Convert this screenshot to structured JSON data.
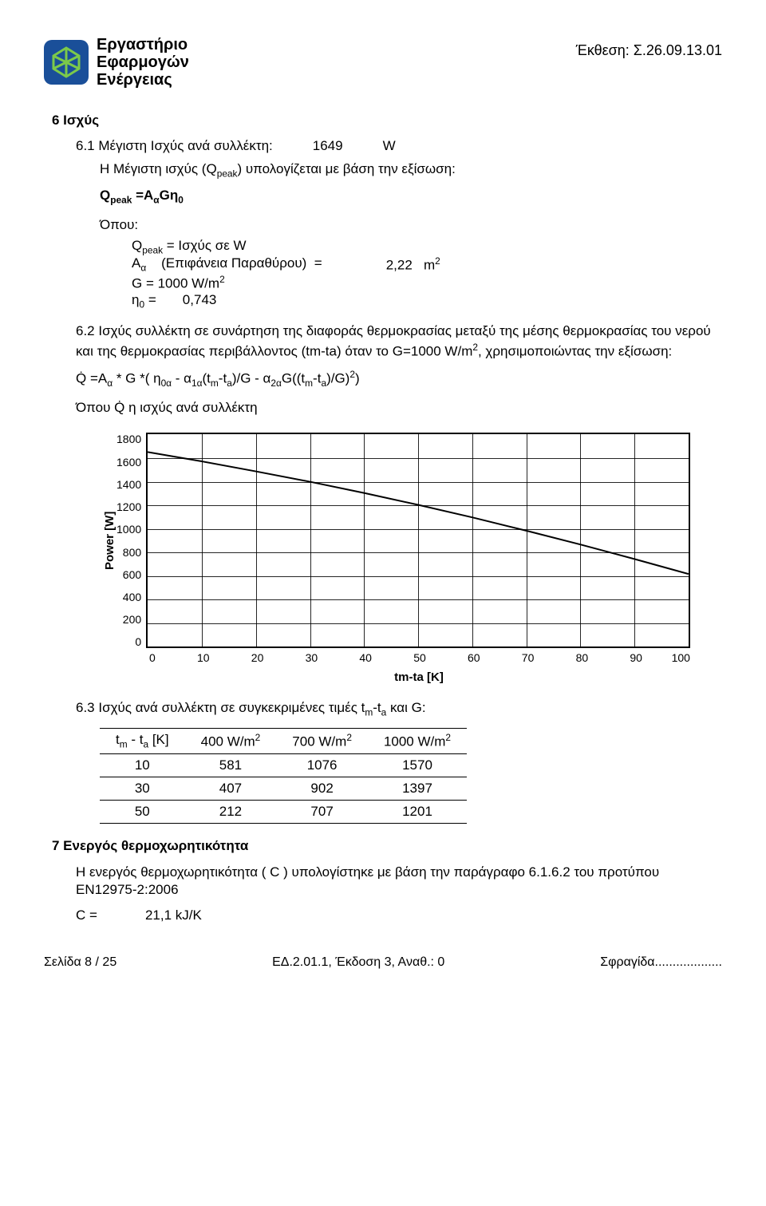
{
  "header": {
    "logo_line1": "Εργαστήριο",
    "logo_line2": "Εφαρμογών",
    "logo_line3": "Ενέργειας",
    "report_ref": "Έκθεση: Σ.26.09.13.01"
  },
  "s6": {
    "title": "6 Ισχύς",
    "s61_label": "6.1 Μέγιστη Ισχύς ανά συλλέκτη:",
    "s61_value": "1649",
    "s61_unit": "W",
    "s61_desc_prefix": "Η Μέγιστη ισχύς (Q",
    "s61_desc_sub": "peak",
    "s61_desc_suffix": ") υπολογίζεται με βάση την εξίσωση:",
    "formula1_lhs": "Q",
    "formula1_sub1": "peak",
    "formula1_eq": " =Α",
    "formula1_sub2": "α",
    "formula1_rhs": "Gη",
    "formula1_sub3": "0",
    "where_label": "Όπου:",
    "q_line": "Q",
    "q_line_sub": "peak",
    "q_line_rest": " = Ισχύς σε W",
    "a_line": "Α",
    "a_sub": "α",
    "a_rest": "    (Επιφάνεια Παραθύρου)  =",
    "a_val": "2,22",
    "a_unit": "m",
    "a_exp": "2",
    "g_line": "G  = 1000 W/m",
    "g_exp": "2",
    "eta_line": "η",
    "eta_sub": "0",
    "eta_rest": " =       0,743",
    "s62_text": "6.2 Ισχύς συλλέκτη σε συνάρτηση της διαφοράς θερμοκρασίας μεταξύ της  μέσης θερμοκρασίας του νερού και  της θερμοκρασίας περιβάλλοντος (tm-ta) όταν το  G=1000 W/m",
    "s62_exp": "2",
    "s62_text2": ", χρησιμοποιώντας την εξίσωση:",
    "s62_formula": "Q̇ =A",
    "s62_f_sub1": "α",
    "s62_f_mid": " * G *( η",
    "s62_f_sub2": "0α",
    "s62_f_mid2": " - α",
    "s62_f_sub3": "1α",
    "s62_f_mid3": "(t",
    "s62_f_sub4": "m",
    "s62_f_mid4": "-t",
    "s62_f_sub5": "a",
    "s62_f_mid5": ")/G - α",
    "s62_f_sub6": "2α",
    "s62_f_mid6": "G((t",
    "s62_f_sub7": "m",
    "s62_f_mid7": "-t",
    "s62_f_sub8": "a",
    "s62_f_mid8": ")/G)",
    "s62_f_exp": "2",
    "s62_f_end": ")",
    "s62_where": "Όπου Q̇ η ισχύς ανά συλλέκτη"
  },
  "chart": {
    "type": "line",
    "y_title": "Power  [W]",
    "x_title": "tm-ta [K]",
    "y_ticks": [
      "1800",
      "1600",
      "1400",
      "1200",
      "1000",
      "800",
      "600",
      "400",
      "200",
      "0"
    ],
    "x_ticks": [
      "0",
      "10",
      "20",
      "30",
      "40",
      "50",
      "60",
      "70",
      "80",
      "90",
      "100"
    ],
    "ylim": [
      0,
      1800
    ],
    "xlim": [
      0,
      100
    ],
    "line_color": "#000000",
    "line_width": 2,
    "grid_color": "#000000",
    "background_color": "#ffffff",
    "points_y": [
      1649,
      1570,
      1485,
      1397,
      1302,
      1201,
      1095,
      982,
      865,
      742,
      615
    ]
  },
  "s63": {
    "label": "6.3  Ισχύς ανά συλλέκτη σε συγκεκριμένες τιμές t",
    "sub1": "m",
    "mid": "-t",
    "sub2": "a",
    "suffix": " και G:",
    "col0": "t",
    "col0_sub1": "m",
    "col0_mid": " - t",
    "col0_sub2": "a",
    "col0_suffix": " [K]",
    "col1": "400 W/m",
    "col2": "700 W/m",
    "col3": "1000 W/m",
    "exp": "2",
    "rows": [
      [
        "10",
        "581",
        "1076",
        "1570"
      ],
      [
        "30",
        "407",
        "902",
        "1397"
      ],
      [
        "50",
        "212",
        "707",
        "1201"
      ]
    ]
  },
  "s7": {
    "title": "7 Ενεργός θερμοχωρητικότητα",
    "text": "Η ενεργός θερμοχωρητικότητα ( C ) υπολογίστηκε με βάση την παράγραφο 6.1.6.2 του προτύπου EN12975-2:2006",
    "c_label": "C =",
    "c_value": "21,1 kJ/K"
  },
  "footer": {
    "left": "Σελίδα 8 / 25",
    "mid": "ΕΔ.2.01.1, Έκδοση 3, Αναθ.: 0",
    "right": "Σφραγίδα..................."
  }
}
